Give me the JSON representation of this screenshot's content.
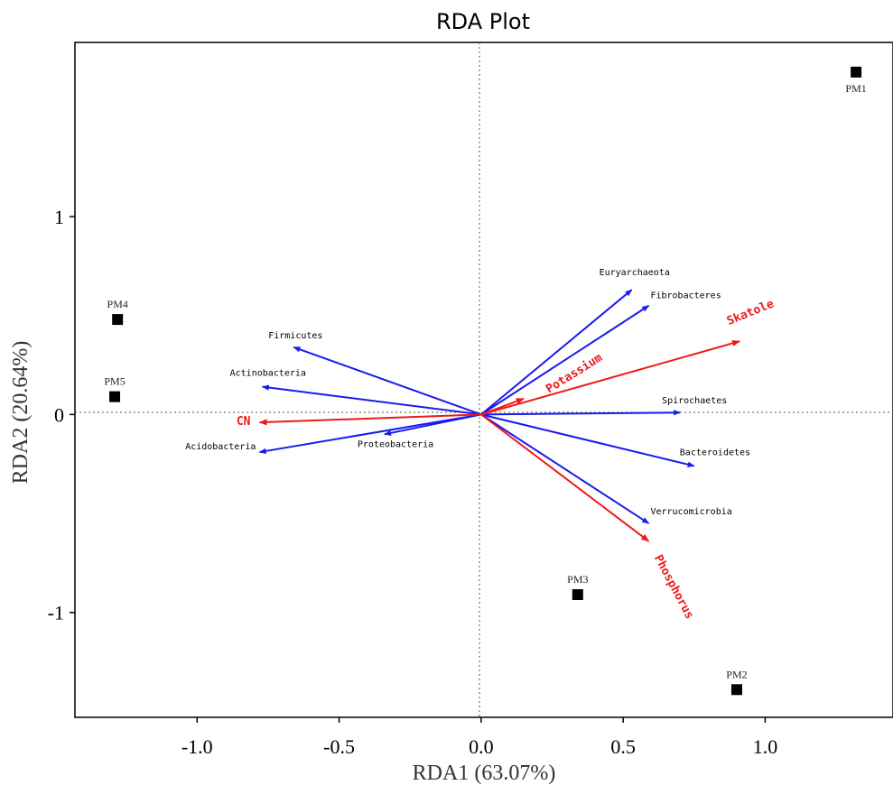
{
  "chart_data": {
    "type": "scatter",
    "title": "RDA Plot",
    "xlabel": "RDA1 (63.07%)",
    "ylabel": "RDA2 (20.64%)",
    "xlim": [
      -1.43,
      1.45
    ],
    "ylim": [
      -1.53,
      1.88
    ],
    "xticks": [
      -1.0,
      -0.5,
      0.0,
      0.5,
      1.0
    ],
    "xtick_labels": [
      "-1.0",
      "-0.5",
      "0.0",
      "0.5",
      "1.0"
    ],
    "yticks": [
      -1,
      0,
      1
    ],
    "ytick_labels": [
      "-1",
      "0",
      "1"
    ],
    "grid": false,
    "reference_lines": {
      "x": 0,
      "y": 0,
      "style": "dotted"
    },
    "colors": {
      "species": "#1a1aee",
      "environment": "#ee1a1a",
      "sites": "#000000"
    },
    "sites": [
      {
        "name": "PM1",
        "x": 1.32,
        "y": 1.73
      },
      {
        "name": "PM2",
        "x": 0.9,
        "y": -1.39
      },
      {
        "name": "PM3",
        "x": 0.34,
        "y": -0.91
      },
      {
        "name": "PM4",
        "x": -1.28,
        "y": 0.48
      },
      {
        "name": "PM5",
        "x": -1.29,
        "y": 0.09
      }
    ],
    "species_arrows": [
      {
        "name": "Euryarchaeota",
        "x": 0.53,
        "y": 0.63
      },
      {
        "name": "Fibrobacteres",
        "x": 0.59,
        "y": 0.55
      },
      {
        "name": "Firmicutes",
        "x": -0.66,
        "y": 0.34
      },
      {
        "name": "Actinobacteria",
        "x": -0.77,
        "y": 0.14
      },
      {
        "name": "Acidobacteria",
        "x": -0.78,
        "y": -0.19
      },
      {
        "name": "Proteobacteria",
        "x": -0.34,
        "y": -0.1
      },
      {
        "name": "Spirochaetes",
        "x": 0.7,
        "y": 0.01
      },
      {
        "name": "Bacteroidetes",
        "x": 0.75,
        "y": -0.26
      },
      {
        "name": "Verrucomicrobia",
        "x": 0.59,
        "y": -0.55
      }
    ],
    "environment_arrows": [
      {
        "name": "Skatole",
        "x": 0.91,
        "y": 0.37
      },
      {
        "name": "Potassium",
        "x": 0.15,
        "y": 0.08
      },
      {
        "name": "CN",
        "x": -0.78,
        "y": -0.04
      },
      {
        "name": "Phosphorus",
        "x": 0.59,
        "y": -0.64
      }
    ]
  }
}
